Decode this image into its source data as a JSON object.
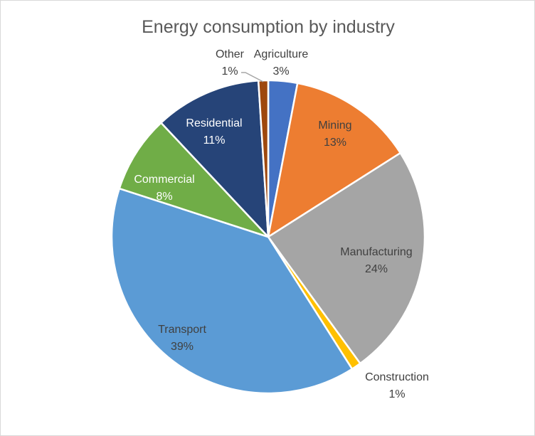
{
  "chart_data": {
    "type": "pie",
    "title": "Energy consumption by industry",
    "start_angle": "12 o'clock",
    "direction": "clockwise",
    "legend": "none",
    "slices": [
      {
        "label": "Agriculture",
        "value": 3,
        "display": "3%",
        "color": "#4472C4",
        "label_color": "#404040"
      },
      {
        "label": "Mining",
        "value": 13,
        "display": "13%",
        "color": "#ED7D31",
        "label_color": "#404040"
      },
      {
        "label": "Manufacturing",
        "value": 24,
        "display": "24%",
        "color": "#A5A5A5",
        "label_color": "#404040"
      },
      {
        "label": "Construction",
        "value": 1,
        "display": "1%",
        "color": "#FFC000",
        "label_color": "#404040"
      },
      {
        "label": "Transport",
        "value": 39,
        "display": "39%",
        "color": "#5B9BD5",
        "label_color": "#404040"
      },
      {
        "label": "Commercial",
        "value": 8,
        "display": "8%",
        "color": "#70AD47",
        "label_color": "#FFFFFF"
      },
      {
        "label": "Residential",
        "value": 11,
        "display": "11%",
        "color": "#264478",
        "label_color": "#FFFFFF"
      },
      {
        "label": "Other",
        "value": 1,
        "display": "1%",
        "color": "#9E480E",
        "label_color": "#404040"
      }
    ]
  }
}
